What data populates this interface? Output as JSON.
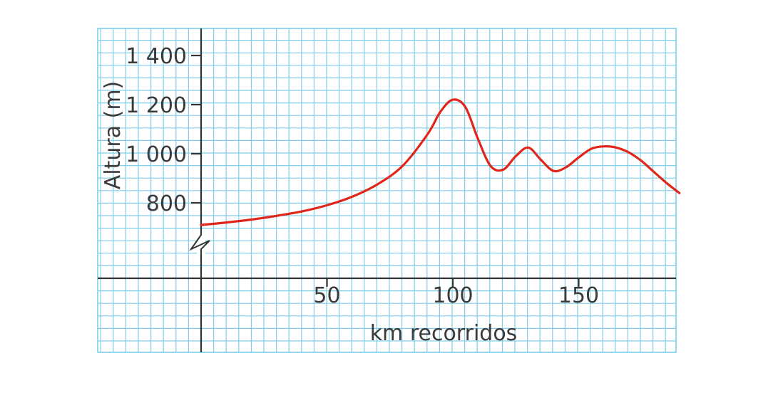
{
  "chart_data": {
    "type": "line",
    "title": "",
    "xlabel": "km recorridos",
    "ylabel": "Altura (m)",
    "x_ticks": [
      50,
      100,
      150
    ],
    "y_ticks": [
      800,
      1000,
      1200,
      1400
    ],
    "y_tick_labels": [
      "800",
      "1 000",
      "1 200",
      "1 400"
    ],
    "xlim": [
      -40,
      190
    ],
    "ylim": [
      700,
      1500
    ],
    "y_axis_break": true,
    "grid": true,
    "colors": {
      "line": "#e0261b",
      "grid": "#7fcfe9",
      "axis": "#333333",
      "text": "#3a3a3a"
    },
    "series": [
      {
        "x": [
          0,
          10,
          20,
          30,
          40,
          50,
          60,
          70,
          80,
          90,
          95,
          100,
          105,
          110,
          115,
          120,
          125,
          130,
          135,
          140,
          145,
          150,
          155,
          160,
          165,
          170,
          175,
          180,
          185,
          190
        ],
        "y": [
          710,
          720,
          732,
          747,
          765,
          790,
          825,
          875,
          950,
          1080,
          1170,
          1220,
          1190,
          1060,
          950,
          935,
          990,
          1025,
          975,
          930,
          945,
          985,
          1020,
          1030,
          1025,
          1005,
          970,
          925,
          880,
          840
        ]
      }
    ]
  }
}
